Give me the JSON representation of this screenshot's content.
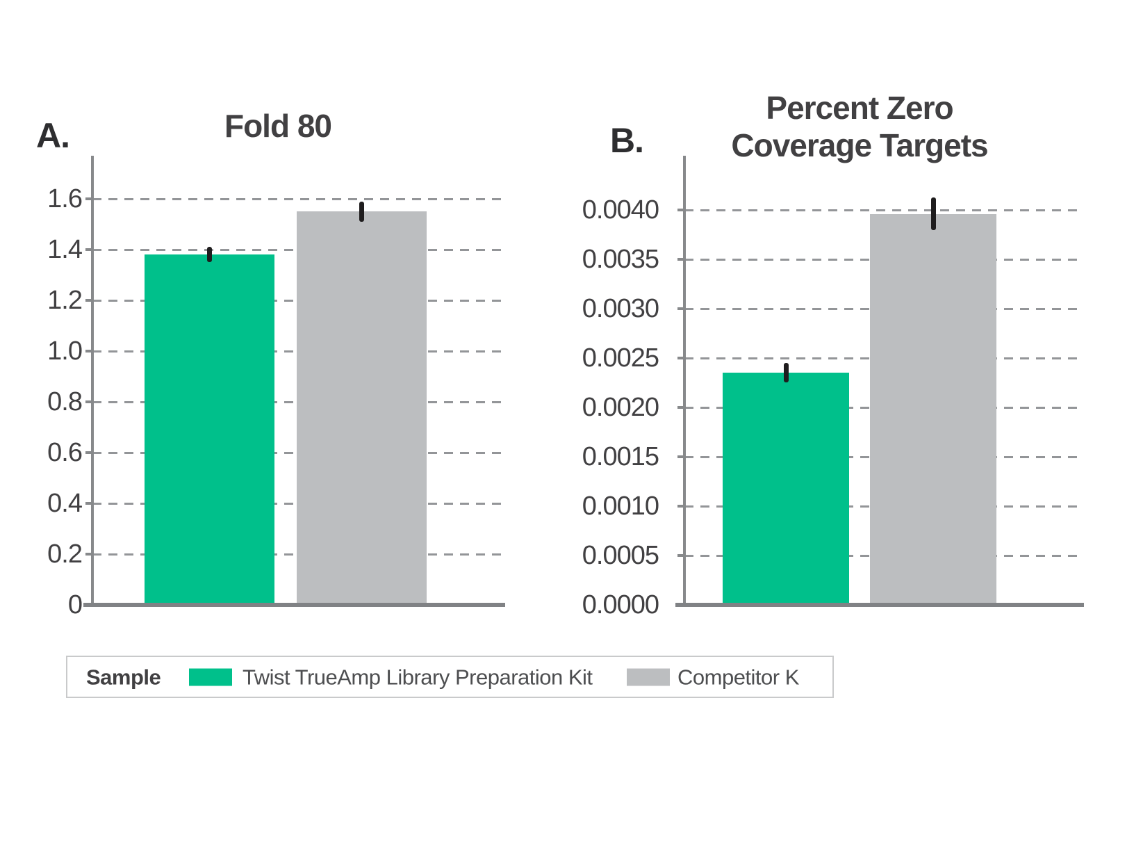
{
  "figure": {
    "panel_a": {
      "letter": "A.",
      "title": "Fold 80"
    },
    "panel_b": {
      "letter": "B.",
      "title_line1": "Percent Zero",
      "title_line2": "Coverage Targets"
    },
    "legend": {
      "title": "Sample",
      "series1_label": "Twist TrueAmp Library Preparation Kit",
      "series2_label": "Competitor K"
    }
  },
  "colors": {
    "green": "#00c08b",
    "gray": "#bcbec0",
    "axis": "#87898b",
    "grid": "#939598",
    "error": "#1f1d1e",
    "legend_border": "#c9cacb"
  },
  "chart_data": [
    {
      "type": "bar",
      "panel": "A",
      "title": "Fold 80",
      "categories": [
        "Twist TrueAmp Library Preparation Kit",
        "Competitor K"
      ],
      "values": [
        1.38,
        1.55
      ],
      "error_bars": [
        0.03,
        0.04
      ],
      "bar_colors": [
        "#00c08b",
        "#bcbec0"
      ],
      "xlabel": "",
      "ylabel": "",
      "ylim": [
        0,
        1.748
      ],
      "grid": "dashed-horizontal",
      "legend_position": "bottom",
      "yticks": [
        {
          "value": 1.6,
          "label": "1.6"
        },
        {
          "value": 1.4,
          "label": "1.4"
        },
        {
          "value": 1.2,
          "label": "1.2"
        },
        {
          "value": 1.0,
          "label": "1.0"
        },
        {
          "value": 0.8,
          "label": "0.8"
        },
        {
          "value": 0.6,
          "label": "0.6"
        },
        {
          "value": 0.4,
          "label": "0.4"
        },
        {
          "value": 0.2,
          "label": "0.2"
        },
        {
          "value": 0,
          "label": "0"
        }
      ]
    },
    {
      "type": "bar",
      "panel": "B",
      "title": "Percent Zero Coverage Targets",
      "categories": [
        "Twist TrueAmp Library Preparation Kit",
        "Competitor K"
      ],
      "values": [
        0.00235,
        0.00396
      ],
      "error_bars": [
        0.0001,
        0.000165
      ],
      "bar_colors": [
        "#00c08b",
        "#bcbec0"
      ],
      "xlabel": "",
      "ylabel": "",
      "ylim": [
        0,
        0.004493
      ],
      "grid": "dashed-horizontal",
      "legend_position": "bottom",
      "yticks": [
        {
          "value": 0.004,
          "label": "0.0040"
        },
        {
          "value": 0.0035,
          "label": "0.0035"
        },
        {
          "value": 0.003,
          "label": "0.0030"
        },
        {
          "value": 0.0025,
          "label": "0.0025"
        },
        {
          "value": 0.002,
          "label": "0.0020"
        },
        {
          "value": 0.0015,
          "label": "0.0015"
        },
        {
          "value": 0.001,
          "label": "0.0010"
        },
        {
          "value": 0.0005,
          "label": "0.0005"
        },
        {
          "value": 0,
          "label": "0.0000"
        }
      ]
    }
  ]
}
